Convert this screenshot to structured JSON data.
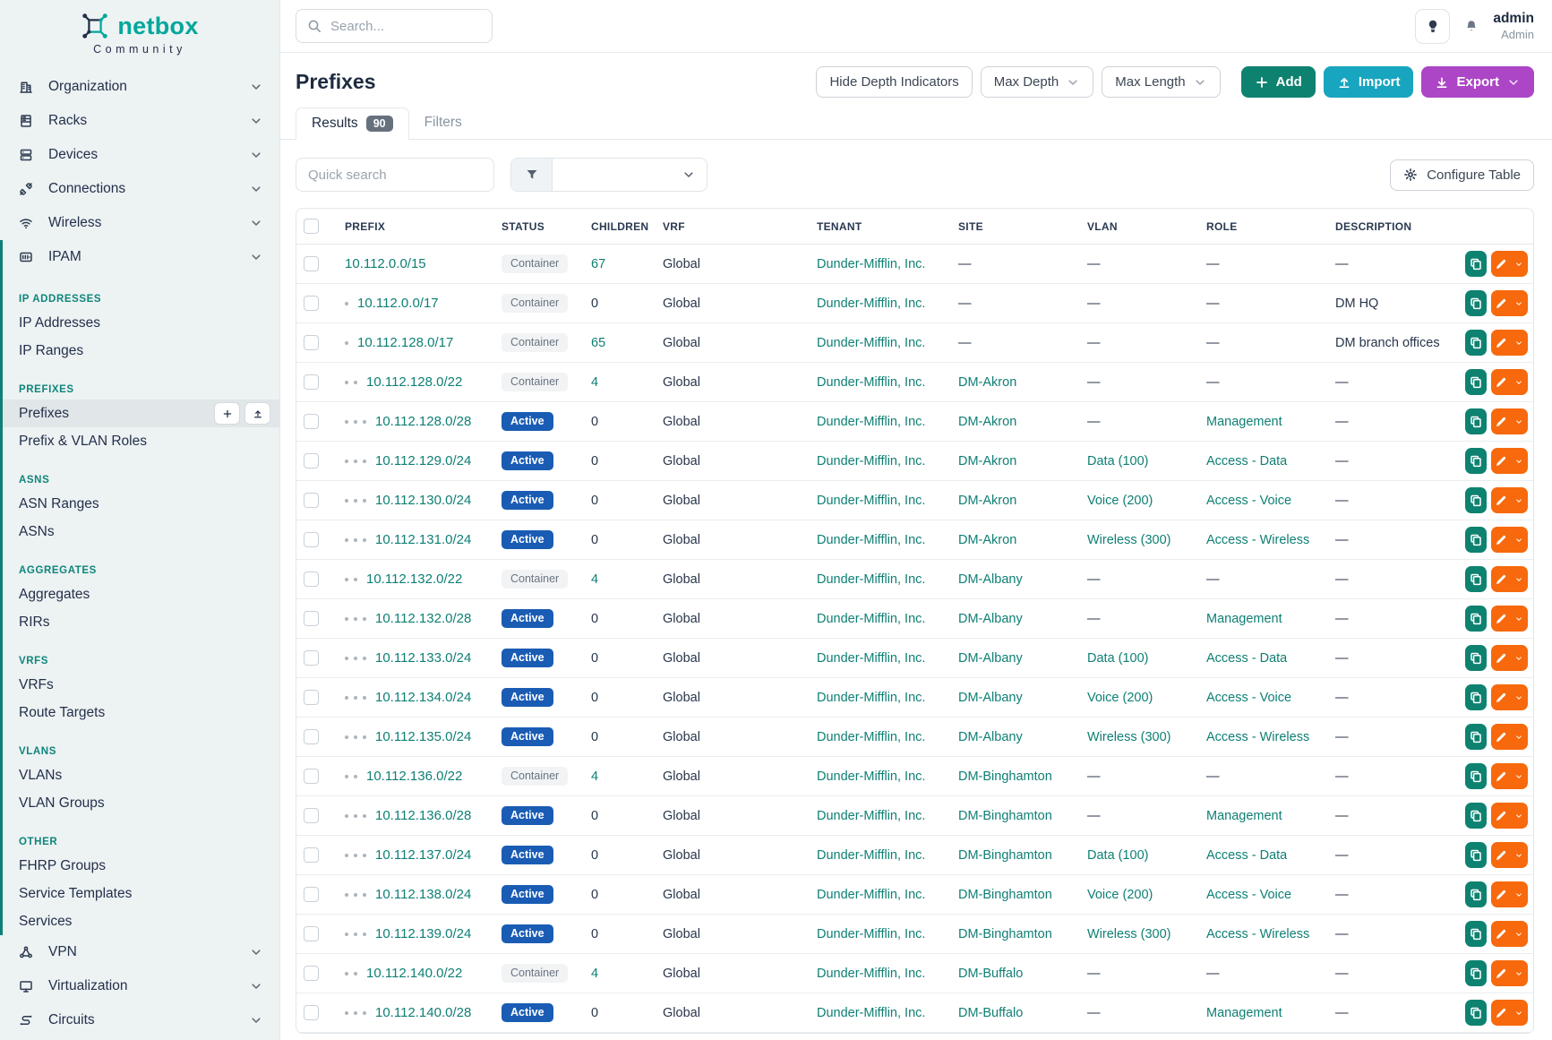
{
  "brand": {
    "name": "netbox",
    "subtitle": "Community"
  },
  "topbar": {
    "search_placeholder": "Search...",
    "user": {
      "name": "admin",
      "role": "Admin"
    }
  },
  "page": {
    "title": "Prefixes",
    "toolbar": {
      "hide_depth": "Hide Depth Indicators",
      "max_depth": "Max Depth",
      "max_length": "Max Length",
      "add": "Add",
      "import": "Import",
      "export": "Export"
    },
    "tabs": {
      "results_label": "Results",
      "results_count": "90",
      "filters_label": "Filters"
    },
    "quick_search_placeholder": "Quick search",
    "configure_table": "Configure Table"
  },
  "sidebar": {
    "top_items": [
      {
        "label": "Organization",
        "icon": "building"
      },
      {
        "label": "Racks",
        "icon": "rack"
      },
      {
        "label": "Devices",
        "icon": "server"
      },
      {
        "label": "Connections",
        "icon": "plug"
      },
      {
        "label": "Wireless",
        "icon": "wifi"
      }
    ],
    "ipam": {
      "label": "IPAM",
      "icon": "ipam",
      "sections": [
        {
          "title": "IP ADDRESSES",
          "items": [
            {
              "label": "IP Addresses"
            },
            {
              "label": "IP Ranges"
            }
          ]
        },
        {
          "title": "PREFIXES",
          "items": [
            {
              "label": "Prefixes",
              "active": true
            },
            {
              "label": "Prefix & VLAN Roles"
            }
          ]
        },
        {
          "title": "ASNS",
          "items": [
            {
              "label": "ASN Ranges"
            },
            {
              "label": "ASNs"
            }
          ]
        },
        {
          "title": "AGGREGATES",
          "items": [
            {
              "label": "Aggregates"
            },
            {
              "label": "RIRs"
            }
          ]
        },
        {
          "title": "VRFS",
          "items": [
            {
              "label": "VRFs"
            },
            {
              "label": "Route Targets"
            }
          ]
        },
        {
          "title": "VLANS",
          "items": [
            {
              "label": "VLANs"
            },
            {
              "label": "VLAN Groups"
            }
          ]
        },
        {
          "title": "OTHER",
          "items": [
            {
              "label": "FHRP Groups"
            },
            {
              "label": "Service Templates"
            },
            {
              "label": "Services"
            }
          ]
        }
      ]
    },
    "bottom_items": [
      {
        "label": "VPN",
        "icon": "vpn"
      },
      {
        "label": "Virtualization",
        "icon": "monitor"
      },
      {
        "label": "Circuits",
        "icon": "circuit"
      }
    ]
  },
  "table": {
    "columns": [
      "PREFIX",
      "STATUS",
      "CHILDREN",
      "VRF",
      "TENANT",
      "SITE",
      "VLAN",
      "ROLE",
      "DESCRIPTION"
    ],
    "rows": [
      {
        "depth": 0,
        "prefix": "10.112.0.0/15",
        "status": "Container",
        "children": "67",
        "vrf": "Global",
        "tenant": "Dunder-Mifflin, Inc.",
        "site": "—",
        "vlan": "—",
        "role": "—",
        "description": "—"
      },
      {
        "depth": 1,
        "prefix": "10.112.0.0/17",
        "status": "Container",
        "children": "0",
        "vrf": "Global",
        "tenant": "Dunder-Mifflin, Inc.",
        "site": "—",
        "vlan": "—",
        "role": "—",
        "description": "DM HQ"
      },
      {
        "depth": 1,
        "prefix": "10.112.128.0/17",
        "status": "Container",
        "children": "65",
        "vrf": "Global",
        "tenant": "Dunder-Mifflin, Inc.",
        "site": "—",
        "vlan": "—",
        "role": "—",
        "description": "DM branch offices"
      },
      {
        "depth": 2,
        "prefix": "10.112.128.0/22",
        "status": "Container",
        "children": "4",
        "vrf": "Global",
        "tenant": "Dunder-Mifflin, Inc.",
        "site": "DM-Akron",
        "vlan": "—",
        "role": "—",
        "description": "—"
      },
      {
        "depth": 3,
        "prefix": "10.112.128.0/28",
        "status": "Active",
        "children": "0",
        "vrf": "Global",
        "tenant": "Dunder-Mifflin, Inc.",
        "site": "DM-Akron",
        "vlan": "—",
        "role": "Management",
        "description": "—"
      },
      {
        "depth": 3,
        "prefix": "10.112.129.0/24",
        "status": "Active",
        "children": "0",
        "vrf": "Global",
        "tenant": "Dunder-Mifflin, Inc.",
        "site": "DM-Akron",
        "vlan": "Data (100)",
        "role": "Access - Data",
        "description": "—"
      },
      {
        "depth": 3,
        "prefix": "10.112.130.0/24",
        "status": "Active",
        "children": "0",
        "vrf": "Global",
        "tenant": "Dunder-Mifflin, Inc.",
        "site": "DM-Akron",
        "vlan": "Voice (200)",
        "role": "Access - Voice",
        "description": "—"
      },
      {
        "depth": 3,
        "prefix": "10.112.131.0/24",
        "status": "Active",
        "children": "0",
        "vrf": "Global",
        "tenant": "Dunder-Mifflin, Inc.",
        "site": "DM-Akron",
        "vlan": "Wireless (300)",
        "role": "Access - Wireless",
        "description": "—"
      },
      {
        "depth": 2,
        "prefix": "10.112.132.0/22",
        "status": "Container",
        "children": "4",
        "vrf": "Global",
        "tenant": "Dunder-Mifflin, Inc.",
        "site": "DM-Albany",
        "vlan": "—",
        "role": "—",
        "description": "—"
      },
      {
        "depth": 3,
        "prefix": "10.112.132.0/28",
        "status": "Active",
        "children": "0",
        "vrf": "Global",
        "tenant": "Dunder-Mifflin, Inc.",
        "site": "DM-Albany",
        "vlan": "—",
        "role": "Management",
        "description": "—"
      },
      {
        "depth": 3,
        "prefix": "10.112.133.0/24",
        "status": "Active",
        "children": "0",
        "vrf": "Global",
        "tenant": "Dunder-Mifflin, Inc.",
        "site": "DM-Albany",
        "vlan": "Data (100)",
        "role": "Access - Data",
        "description": "—"
      },
      {
        "depth": 3,
        "prefix": "10.112.134.0/24",
        "status": "Active",
        "children": "0",
        "vrf": "Global",
        "tenant": "Dunder-Mifflin, Inc.",
        "site": "DM-Albany",
        "vlan": "Voice (200)",
        "role": "Access - Voice",
        "description": "—"
      },
      {
        "depth": 3,
        "prefix": "10.112.135.0/24",
        "status": "Active",
        "children": "0",
        "vrf": "Global",
        "tenant": "Dunder-Mifflin, Inc.",
        "site": "DM-Albany",
        "vlan": "Wireless (300)",
        "role": "Access - Wireless",
        "description": "—"
      },
      {
        "depth": 2,
        "prefix": "10.112.136.0/22",
        "status": "Container",
        "children": "4",
        "vrf": "Global",
        "tenant": "Dunder-Mifflin, Inc.",
        "site": "DM-Binghamton",
        "vlan": "—",
        "role": "—",
        "description": "—"
      },
      {
        "depth": 3,
        "prefix": "10.112.136.0/28",
        "status": "Active",
        "children": "0",
        "vrf": "Global",
        "tenant": "Dunder-Mifflin, Inc.",
        "site": "DM-Binghamton",
        "vlan": "—",
        "role": "Management",
        "description": "—"
      },
      {
        "depth": 3,
        "prefix": "10.112.137.0/24",
        "status": "Active",
        "children": "0",
        "vrf": "Global",
        "tenant": "Dunder-Mifflin, Inc.",
        "site": "DM-Binghamton",
        "vlan": "Data (100)",
        "role": "Access - Data",
        "description": "—"
      },
      {
        "depth": 3,
        "prefix": "10.112.138.0/24",
        "status": "Active",
        "children": "0",
        "vrf": "Global",
        "tenant": "Dunder-Mifflin, Inc.",
        "site": "DM-Binghamton",
        "vlan": "Voice (200)",
        "role": "Access - Voice",
        "description": "—"
      },
      {
        "depth": 3,
        "prefix": "10.112.139.0/24",
        "status": "Active",
        "children": "0",
        "vrf": "Global",
        "tenant": "Dunder-Mifflin, Inc.",
        "site": "DM-Binghamton",
        "vlan": "Wireless (300)",
        "role": "Access - Wireless",
        "description": "—"
      },
      {
        "depth": 2,
        "prefix": "10.112.140.0/22",
        "status": "Container",
        "children": "4",
        "vrf": "Global",
        "tenant": "Dunder-Mifflin, Inc.",
        "site": "DM-Buffalo",
        "vlan": "—",
        "role": "—",
        "description": "—"
      },
      {
        "depth": 3,
        "prefix": "10.112.140.0/28",
        "status": "Active",
        "children": "0",
        "vrf": "Global",
        "tenant": "Dunder-Mifflin, Inc.",
        "site": "DM-Buffalo",
        "vlan": "—",
        "role": "Management",
        "description": "—"
      }
    ]
  },
  "icons": {
    "search": "magnifier",
    "lightbulb": "bulb",
    "bell": "bell",
    "funnel": "filter-funnel",
    "gear": "configure",
    "plus": "add",
    "upload": "import",
    "download": "export",
    "chevron-down": "expand",
    "copy": "clone-row",
    "pencil": "edit-row"
  },
  "colors": {
    "brand_teal": "#00A79B",
    "link_teal": "#0E7F74",
    "section_teal": "#0E857B",
    "add_green": "#0E8270",
    "import_cyan": "#18A5BF",
    "export_purple": "#AC46C6",
    "edit_orange": "#F7690C",
    "active_badge_blue": "#1A5CB4",
    "sidebar_bg": "#EDF2F3",
    "text_dark": "#1E2B40"
  }
}
